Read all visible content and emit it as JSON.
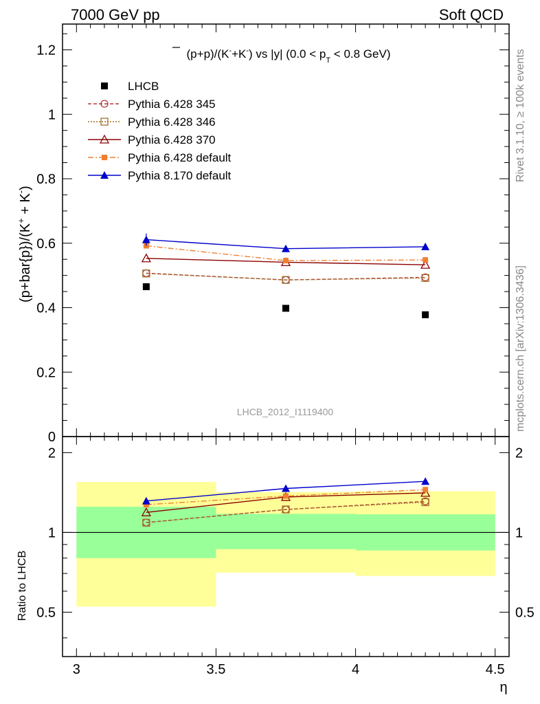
{
  "header": {
    "left": "7000 GeV pp",
    "right": "Soft QCD"
  },
  "side_labels": {
    "rivet": "Rivet 3.1.10, ≥ 100k events",
    "mcplots": "mcplots.cern.ch [arXiv:1306.3436]"
  },
  "watermark": "LHCB_2012_I1119400",
  "chart_data": [
    {
      "type": "scatter",
      "panel": "main",
      "title": "(p̅+p)/(K⁻+K⁻) vs |y| (0.0 < p_T < 0.8 GeV)",
      "ylabel": "(p+bar{p})/(K⁺ + K⁻)",
      "xlim": [
        2.95,
        4.55
      ],
      "ylim": [
        0,
        1.28
      ],
      "yticks": [
        0,
        0.2,
        0.4,
        0.6,
        0.8,
        1,
        1.2
      ],
      "ytick_labels": [
        "0",
        "0.2",
        "0.4",
        "0.6",
        "0.8",
        "1",
        "1.2"
      ],
      "legend_placement": "top-left",
      "x": [
        3.25,
        3.75,
        4.25
      ],
      "series": [
        {
          "name": "LHCB",
          "color": "#000000",
          "marker": "square-filled",
          "line": "none",
          "values": [
            0.465,
            0.398,
            0.378
          ]
        },
        {
          "name": "Pythia 6.428 345",
          "color": "#b03a3a",
          "marker": "circle-open",
          "line": "dashed",
          "values": [
            0.507,
            0.486,
            0.494
          ]
        },
        {
          "name": "Pythia 6.428 346",
          "color": "#a0702a",
          "marker": "square-open",
          "line": "dotted",
          "values": [
            0.506,
            0.486,
            0.492
          ]
        },
        {
          "name": "Pythia 6.428 370",
          "color": "#8b0000",
          "marker": "triangle-open",
          "line": "solid",
          "values": [
            0.553,
            0.541,
            0.533
          ]
        },
        {
          "name": "Pythia 6.428 default",
          "color": "#f08030",
          "marker": "square-filled-small",
          "line": "dashdot",
          "values": [
            0.592,
            0.546,
            0.548
          ]
        },
        {
          "name": "Pythia 8.170 default",
          "color": "#0000cc",
          "marker": "triangle-filled",
          "line": "solid",
          "values": [
            0.611,
            0.583,
            0.589
          ]
        }
      ]
    },
    {
      "type": "line",
      "panel": "ratio",
      "ylabel": "Ratio to LHCB",
      "xlabel": "η",
      "xlim": [
        2.95,
        4.55
      ],
      "ylim": [
        0.34,
        2.3
      ],
      "yscale": "log",
      "yticks": [
        0.5,
        1,
        2
      ],
      "ytick_labels": [
        "0.5",
        "1",
        "2"
      ],
      "xticks": [
        3,
        3.5,
        4,
        4.5
      ],
      "xtick_labels": [
        "3",
        "3.5",
        "4",
        "4.5"
      ],
      "bands": [
        {
          "x0": 3.0,
          "x1": 3.5,
          "y1_lo": 0.8,
          "y1_hi": 1.25,
          "y2_lo": 0.525,
          "y2_hi": 1.55
        },
        {
          "x0": 3.5,
          "x1": 4.0,
          "y1_lo": 0.865,
          "y1_hi": 1.175,
          "y2_lo": 0.705,
          "y2_hi": 1.42
        },
        {
          "x0": 4.0,
          "x1": 4.5,
          "y1_lo": 0.855,
          "y1_hi": 1.17,
          "y2_lo": 0.685,
          "y2_hi": 1.43
        }
      ],
      "band_colors": {
        "inner": "#99ff99",
        "outer": "#ffff99"
      },
      "x": [
        3.25,
        3.75,
        4.25
      ],
      "series": [
        {
          "name": "Pythia 6.428 345",
          "color": "#b03a3a",
          "marker": "circle-open",
          "line": "dashed",
          "values": [
            1.09,
            1.22,
            1.31
          ]
        },
        {
          "name": "Pythia 6.428 346",
          "color": "#a0702a",
          "marker": "square-open",
          "line": "dotted",
          "values": [
            1.088,
            1.221,
            1.3
          ]
        },
        {
          "name": "Pythia 6.428 370",
          "color": "#8b0000",
          "marker": "triangle-open",
          "line": "solid",
          "values": [
            1.19,
            1.36,
            1.41
          ]
        },
        {
          "name": "Pythia 6.428 default",
          "color": "#f08030",
          "marker": "square-filled-small",
          "line": "dashdot",
          "values": [
            1.273,
            1.372,
            1.45
          ]
        },
        {
          "name": "Pythia 8.170 default",
          "color": "#0000cc",
          "marker": "triangle-filled",
          "line": "solid",
          "values": [
            1.314,
            1.465,
            1.558
          ]
        }
      ]
    }
  ]
}
